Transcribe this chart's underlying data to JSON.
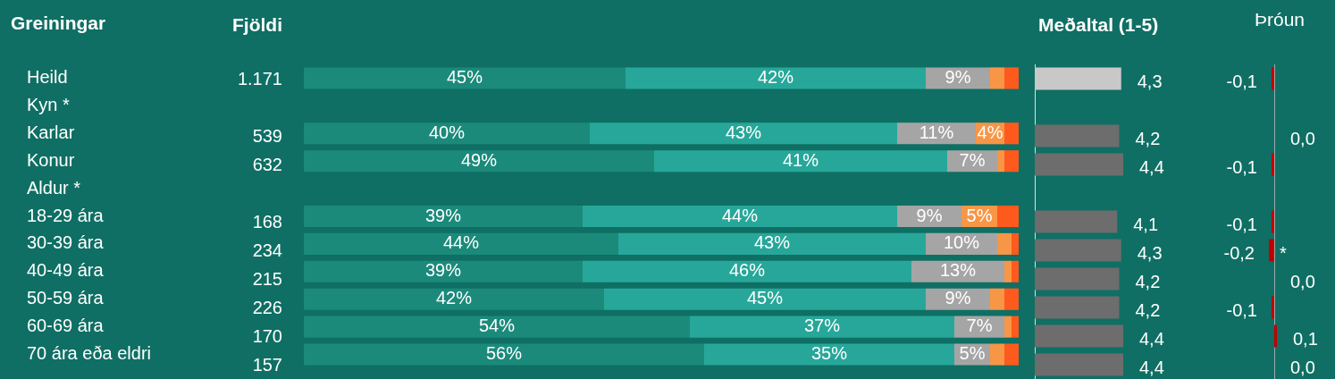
{
  "chart_data": [
    {
      "type": "bar",
      "title": "Greiningar",
      "orientation": "horizontal",
      "stacked": true,
      "tick_labels": "y",
      "xlim": [
        0,
        100
      ],
      "categories": [
        "Heild",
        "Kyn *",
        "Karlar",
        "Konur",
        "Aldur *",
        "18-29 ára",
        "30-39 ára",
        "40-49 ára",
        "50-59 ára",
        "60-69 ára",
        "70 ára eða eldri"
      ],
      "series": [
        {
          "color": "#1b8a7b",
          "values": [
            45,
            null,
            40,
            49,
            null,
            39,
            44,
            39,
            42,
            54,
            56
          ],
          "value_labels": [
            "45%",
            null,
            "40%",
            "49%",
            null,
            "39%",
            "44%",
            "39%",
            "42%",
            "54%",
            "56%"
          ]
        },
        {
          "color": "#27a79a",
          "values": [
            42,
            null,
            43,
            41,
            null,
            44,
            43,
            46,
            45,
            37,
            35
          ],
          "value_labels": [
            "42%",
            null,
            "43%",
            "41%",
            null,
            "44%",
            "43%",
            "46%",
            "45%",
            "37%",
            "35%"
          ]
        },
        {
          "color": "#a5a5a5",
          "values": [
            9,
            null,
            11,
            7,
            null,
            9,
            10,
            13,
            9,
            7,
            5
          ],
          "value_labels": [
            "9%",
            null,
            "11%",
            "7%",
            null,
            "9%",
            "10%",
            "13%",
            "9%",
            "7%",
            "5%"
          ]
        },
        {
          "color": "#f79646",
          "values": [
            2,
            null,
            4,
            1,
            null,
            5,
            2,
            1,
            2,
            1,
            2
          ],
          "value_labels": [
            null,
            null,
            "4%",
            null,
            null,
            "5%",
            null,
            null,
            null,
            null,
            null
          ]
        },
        {
          "color": "#ff5a1e",
          "values": [
            2,
            null,
            2,
            2,
            null,
            3,
            1,
            1,
            2,
            1,
            2
          ]
        }
      ]
    },
    {
      "type": "other",
      "title": "Fjöldi",
      "values": [
        1171,
        null,
        539,
        632,
        null,
        168,
        234,
        215,
        226,
        170,
        157
      ],
      "value_labels": [
        "1.171",
        null,
        "539",
        "632",
        null,
        "168",
        "234",
        "215",
        "226",
        "170",
        "157"
      ]
    },
    {
      "type": "bar",
      "title": "Meðaltal (1-5)",
      "orientation": "horizontal",
      "tick_labels": false,
      "categories": [
        null,
        null,
        null,
        null,
        null,
        null,
        null,
        null,
        null,
        null,
        null
      ],
      "values": [
        4.3,
        null,
        4.2,
        4.4,
        null,
        4.1,
        4.3,
        4.2,
        4.2,
        4.4,
        4.4
      ],
      "colors": [
        "#c8c8c8",
        "#6d6d6d",
        "#6d6d6d",
        "#6d6d6d",
        "#6d6d6d",
        "#6d6d6d",
        "#6d6d6d",
        "#6d6d6d",
        "#6d6d6d",
        "#6d6d6d",
        "#6d6d6d"
      ],
      "value_labels": [
        "4,3",
        null,
        "4,2",
        "4,4",
        null,
        "4,1",
        "4,3",
        "4,2",
        "4,2",
        "4,4",
        "4,4"
      ]
    },
    {
      "type": "bar",
      "title": "Þróun",
      "orientation": "horizontal",
      "tick_labels": false,
      "categories": [
        null,
        null,
        null,
        null,
        null,
        null,
        null,
        null,
        null,
        null,
        null
      ],
      "values": [
        -0.1,
        null,
        0.0,
        -0.1,
        null,
        -0.1,
        -0.2,
        0.0,
        -0.1,
        0.1,
        0.0
      ],
      "color": "#c00000",
      "value_labels": [
        "-0,1",
        null,
        "0,0",
        "-0,1",
        null,
        "-0,1",
        "-0,2",
        "0,0",
        "-0,1",
        "0,1",
        "0,0"
      ],
      "annotations": [
        {
          "text": "*",
          "x": -0.2
        }
      ]
    }
  ]
}
